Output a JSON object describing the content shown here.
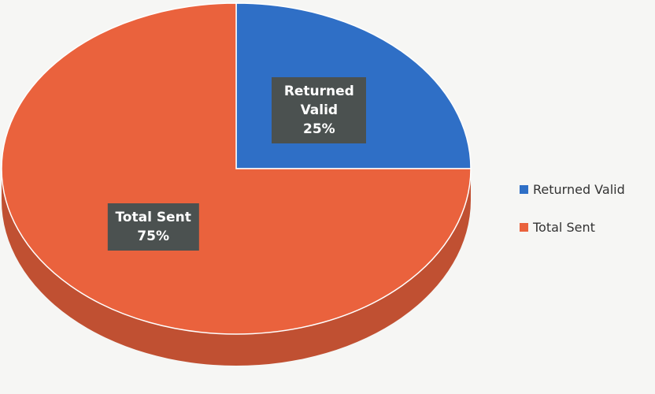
{
  "chart_data": {
    "type": "pie",
    "categories": [
      "Returned Valid",
      "Total Sent"
    ],
    "values": [
      25,
      75
    ],
    "value_labels": [
      "25%",
      "75%"
    ],
    "colors": [
      "#2f6fc6",
      "#ea623d"
    ],
    "legend": "right"
  }
}
